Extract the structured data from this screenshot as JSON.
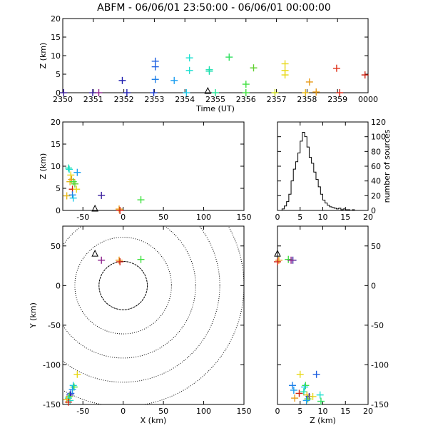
{
  "title": "ABFM - 06/06/01 23:50:00 - 06/06/01 00:00:00",
  "chart_data": [
    {
      "id": "time_height",
      "type": "scatter",
      "xlabel": "Time (UT)",
      "ylabel": "Z (km)",
      "x_tick_labels": [
        "2350",
        "2351",
        "2352",
        "2353",
        "2354",
        "2355",
        "2356",
        "2357",
        "2358",
        "2359",
        "0000"
      ],
      "xlim_minutes": [
        0,
        10
      ],
      "ylim": [
        0,
        20
      ],
      "y_ticks": [
        0,
        5,
        10,
        15,
        20
      ],
      "points": [
        {
          "t": 0.03,
          "z": 0.0,
          "color": "#3a1f9e"
        },
        {
          "t": 0.98,
          "z": 0.0,
          "color": "#3a1f9e"
        },
        {
          "t": 1.18,
          "z": 0.0,
          "color": "#8b1e8b"
        },
        {
          "t": 1.95,
          "z": 3.3,
          "color": "#1f1fb0"
        },
        {
          "t": 2.1,
          "z": 0.0,
          "color": "#1f1fb0"
        },
        {
          "t": 2.98,
          "z": 0.0,
          "color": "#1f3fd0"
        },
        {
          "t": 3.03,
          "z": 8.5,
          "color": "#1e5fe0"
        },
        {
          "t": 3.03,
          "z": 7.0,
          "color": "#1e5fe0"
        },
        {
          "t": 3.03,
          "z": 3.6,
          "color": "#1e7fe8"
        },
        {
          "t": 3.65,
          "z": 3.3,
          "color": "#1e9ff0"
        },
        {
          "t": 4.05,
          "z": 0.0,
          "color": "#1ec8e8"
        },
        {
          "t": 4.15,
          "z": 9.4,
          "color": "#1ee0d0"
        },
        {
          "t": 4.15,
          "z": 6.0,
          "color": "#1ee0d0"
        },
        {
          "t": 4.8,
          "z": 6.2,
          "color": "#1ee0b0"
        },
        {
          "t": 4.8,
          "z": 5.8,
          "color": "#1ee0b0"
        },
        {
          "t": 5.0,
          "z": 0.0,
          "color": "#1ee090"
        },
        {
          "t": 5.45,
          "z": 9.6,
          "color": "#30e060"
        },
        {
          "t": 6.0,
          "z": 2.3,
          "color": "#40e040"
        },
        {
          "t": 6.0,
          "z": 0.0,
          "color": "#40e040"
        },
        {
          "t": 6.25,
          "z": 6.7,
          "color": "#60d030"
        },
        {
          "t": 6.95,
          "z": 0.0,
          "color": "#c8d818"
        },
        {
          "t": 7.28,
          "z": 7.8,
          "color": "#e8d818"
        },
        {
          "t": 7.28,
          "z": 6.0,
          "color": "#e8d818"
        },
        {
          "t": 7.28,
          "z": 4.8,
          "color": "#e8d818"
        },
        {
          "t": 7.95,
          "z": 0.0,
          "color": "#e8b818"
        },
        {
          "t": 8.08,
          "z": 2.9,
          "color": "#e89a18"
        },
        {
          "t": 8.3,
          "z": 0.2,
          "color": "#e89a18"
        },
        {
          "t": 8.97,
          "z": 6.6,
          "color": "#e03018"
        },
        {
          "t": 9.07,
          "z": 0.0,
          "color": "#d02010"
        },
        {
          "t": 9.9,
          "z": 4.8,
          "color": "#d02010"
        }
      ],
      "station": {
        "t": 4.75,
        "z": 0.0
      }
    },
    {
      "id": "x_z",
      "type": "scatter",
      "xlabel": "",
      "ylabel": "Z (km)",
      "xlim": [
        -75,
        150
      ],
      "x_ticks": [
        -50,
        0,
        50,
        100,
        150
      ],
      "ylim": [
        0,
        20
      ],
      "y_ticks": [
        0,
        5,
        10,
        15,
        20
      ],
      "points": [
        {
          "x": -68,
          "z": 9.6,
          "color": "#1ee0b0"
        },
        {
          "x": -67,
          "z": 9.3,
          "color": "#1ee0d0"
        },
        {
          "x": -65,
          "z": 8.0,
          "color": "#e8d818"
        },
        {
          "x": -64,
          "z": 7.0,
          "color": "#e89a18"
        },
        {
          "x": -66,
          "z": 6.5,
          "color": "#e8b818"
        },
        {
          "x": -62,
          "z": 6.5,
          "color": "#40e040"
        },
        {
          "x": -60,
          "z": 6.0,
          "color": "#60d030"
        },
        {
          "x": -57,
          "z": 8.6,
          "color": "#1e9ff0"
        },
        {
          "x": -63,
          "z": 4.8,
          "color": "#d02010"
        },
        {
          "x": -58,
          "z": 4.8,
          "color": "#e8d818"
        },
        {
          "x": -70,
          "z": 3.3,
          "color": "#e8b818"
        },
        {
          "x": -63,
          "z": 3.5,
          "color": "#1e7fe8"
        },
        {
          "x": -62,
          "z": 2.8,
          "color": "#1ec8e8"
        },
        {
          "x": -27,
          "z": 3.4,
          "color": "#3a1f9e"
        },
        {
          "x": -5,
          "z": 0.3,
          "color": "#e89a18"
        },
        {
          "x": -4,
          "z": 0.0,
          "color": "#d02010"
        },
        {
          "x": 22,
          "z": 2.4,
          "color": "#40e040"
        }
      ],
      "station": {
        "x": -35,
        "z": 0.0
      }
    },
    {
      "id": "histogram",
      "type": "step",
      "xlabel": "",
      "ylabel": "number of sources",
      "xlim": [
        0,
        20
      ],
      "x_ticks": [
        0,
        5,
        10,
        15,
        20
      ],
      "ylim": [
        0,
        120
      ],
      "y_ticks": [
        0,
        20,
        40,
        60,
        80,
        100,
        120
      ],
      "bin_width": 0.5,
      "bin_start": 0,
      "counts": [
        0,
        0,
        2,
        6,
        12,
        22,
        40,
        56,
        66,
        78,
        94,
        106,
        100,
        86,
        72,
        64,
        52,
        42,
        32,
        22,
        14,
        10,
        7,
        5,
        4,
        3,
        2,
        3,
        1,
        2,
        1,
        1,
        0,
        1,
        0,
        0,
        0,
        0,
        0,
        0
      ]
    },
    {
      "id": "x_y",
      "type": "scatter",
      "xlabel": "X (km)",
      "ylabel": "Y (km)",
      "xlim": [
        -75,
        150
      ],
      "x_ticks": [
        -50,
        0,
        50,
        100,
        150
      ],
      "ylim": [
        -150,
        75
      ],
      "y_ticks": [
        -150,
        -100,
        -50,
        0,
        50
      ],
      "range_rings_km": [
        30,
        60,
        90,
        120,
        150
      ],
      "points": [
        {
          "x": -27,
          "y": 32,
          "color": "#8b1e8b"
        },
        {
          "x": -5,
          "y": 32,
          "color": "#e89a18"
        },
        {
          "x": -4,
          "y": 30,
          "color": "#d02010"
        },
        {
          "x": 22,
          "y": 33,
          "color": "#40e040"
        },
        {
          "x": -57,
          "y": -112,
          "color": "#e8d818"
        },
        {
          "x": -62,
          "y": -126,
          "color": "#1ec8e8"
        },
        {
          "x": -61,
          "y": -128,
          "color": "#40e040"
        },
        {
          "x": -63,
          "y": -131,
          "color": "#1e9ff0"
        },
        {
          "x": -65,
          "y": -136,
          "color": "#1e5fe0"
        },
        {
          "x": -66,
          "y": -138,
          "color": "#3a1f9e"
        },
        {
          "x": -67,
          "y": -140,
          "color": "#60d030"
        },
        {
          "x": -68,
          "y": -142,
          "color": "#1ee0b0"
        },
        {
          "x": -66,
          "y": -145,
          "color": "#1ee0d0"
        },
        {
          "x": -70,
          "y": -144,
          "color": "#e8b818"
        },
        {
          "x": -68,
          "y": -147,
          "color": "#d02010"
        }
      ],
      "station": {
        "x": -35,
        "y": 38
      }
    },
    {
      "id": "z_y",
      "type": "scatter",
      "xlabel": "Z (km)",
      "ylabel": "",
      "xlim": [
        0,
        20
      ],
      "x_ticks": [
        0,
        5,
        10,
        15,
        20
      ],
      "ylim": [
        -150,
        75
      ],
      "y_ticks": [
        -150,
        -100,
        -50,
        0,
        50
      ],
      "points": [
        {
          "z": 0.3,
          "y": 32,
          "color": "#e89a18"
        },
        {
          "z": 0.0,
          "y": 30,
          "color": "#d02010"
        },
        {
          "z": 2.4,
          "y": 33,
          "color": "#40e040"
        },
        {
          "z": 3.4,
          "y": 32,
          "color": "#3a1f9e"
        },
        {
          "z": 3.0,
          "y": 32,
          "color": "#8b1e8b"
        },
        {
          "z": 5.0,
          "y": -112,
          "color": "#e8d818"
        },
        {
          "z": 8.6,
          "y": -112,
          "color": "#1e5fe0"
        },
        {
          "z": 3.3,
          "y": -126,
          "color": "#1e7fe8"
        },
        {
          "z": 6.2,
          "y": -126,
          "color": "#40e040"
        },
        {
          "z": 6.0,
          "y": -128,
          "color": "#1ec8e8"
        },
        {
          "z": 3.6,
          "y": -132,
          "color": "#1e9ff0"
        },
        {
          "z": 4.8,
          "y": -136,
          "color": "#d02010"
        },
        {
          "z": 5.8,
          "y": -134,
          "color": "#1ee0b0"
        },
        {
          "z": 6.5,
          "y": -138,
          "color": "#e8b818"
        },
        {
          "z": 7.0,
          "y": -140,
          "color": "#3a1f9e"
        },
        {
          "z": 9.4,
          "y": -138,
          "color": "#1ee0d0"
        },
        {
          "z": 7.8,
          "y": -140,
          "color": "#e8d818"
        },
        {
          "z": 3.8,
          "y": -142,
          "color": "#e89a18"
        },
        {
          "z": 6.7,
          "y": -143,
          "color": "#60d030"
        },
        {
          "z": 6.4,
          "y": -145,
          "color": "#1e9ff0"
        },
        {
          "z": 9.6,
          "y": -146,
          "color": "#30e060"
        }
      ],
      "station": {
        "z": 0.0,
        "y": 38
      }
    }
  ]
}
